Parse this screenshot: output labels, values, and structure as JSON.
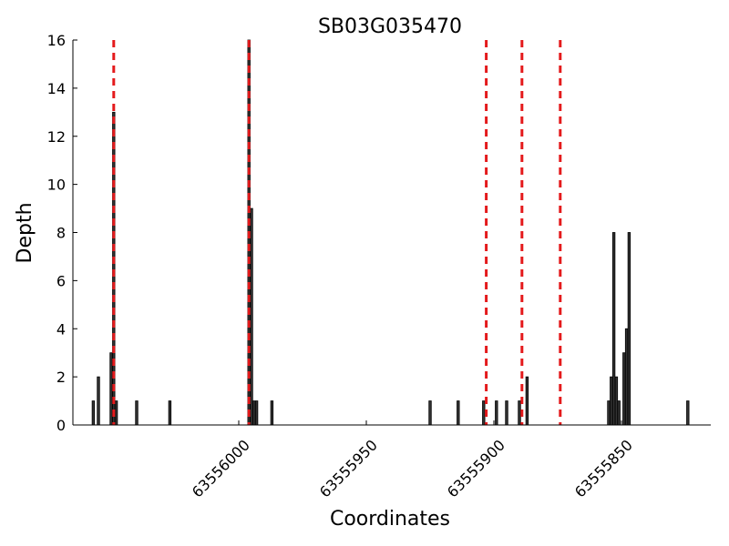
{
  "chart_data": {
    "type": "bar",
    "title": "SB03G035470",
    "xlabel": "Coordinates",
    "ylabel": "Depth",
    "xlim": [
      63556065,
      63555815
    ],
    "x_reversed": true,
    "ylim": [
      0,
      16
    ],
    "grid": false,
    "legend": "none",
    "xticks": [
      63556000,
      63555950,
      63555900,
      63555850
    ],
    "xtick_labels": [
      "63556000",
      "63555950",
      "63555900",
      "63555850"
    ],
    "yticks": [
      0,
      2,
      4,
      6,
      8,
      10,
      12,
      14,
      16
    ],
    "ytick_labels": [
      "0",
      "2",
      "4",
      "6",
      "8",
      "10",
      "12",
      "14",
      "16"
    ],
    "bar_color": "#333333",
    "bars": [
      {
        "x": 63556057,
        "y": 1
      },
      {
        "x": 63556055,
        "y": 2
      },
      {
        "x": 63556050,
        "y": 3
      },
      {
        "x": 63556049,
        "y": 13
      },
      {
        "x": 63556048,
        "y": 1
      },
      {
        "x": 63556040,
        "y": 1
      },
      {
        "x": 63556027,
        "y": 1
      },
      {
        "x": 63555996,
        "y": 16
      },
      {
        "x": 63555995,
        "y": 9
      },
      {
        "x": 63555994,
        "y": 1
      },
      {
        "x": 63555993,
        "y": 1
      },
      {
        "x": 63555987,
        "y": 1
      },
      {
        "x": 63555925,
        "y": 1
      },
      {
        "x": 63555914,
        "y": 1
      },
      {
        "x": 63555904,
        "y": 1
      },
      {
        "x": 63555899,
        "y": 1
      },
      {
        "x": 63555895,
        "y": 1
      },
      {
        "x": 63555890,
        "y": 1
      },
      {
        "x": 63555887,
        "y": 2
      },
      {
        "x": 63555855,
        "y": 1
      },
      {
        "x": 63555854,
        "y": 2
      },
      {
        "x": 63555853,
        "y": 8
      },
      {
        "x": 63555852,
        "y": 2
      },
      {
        "x": 63555851,
        "y": 1
      },
      {
        "x": 63555849,
        "y": 3
      },
      {
        "x": 63555848,
        "y": 4
      },
      {
        "x": 63555847,
        "y": 8
      },
      {
        "x": 63555824,
        "y": 1
      }
    ],
    "vlines": {
      "color": "#e41a1c",
      "style": "dashed",
      "x": [
        63556049,
        63555996,
        63555903,
        63555889,
        63555874
      ]
    }
  }
}
